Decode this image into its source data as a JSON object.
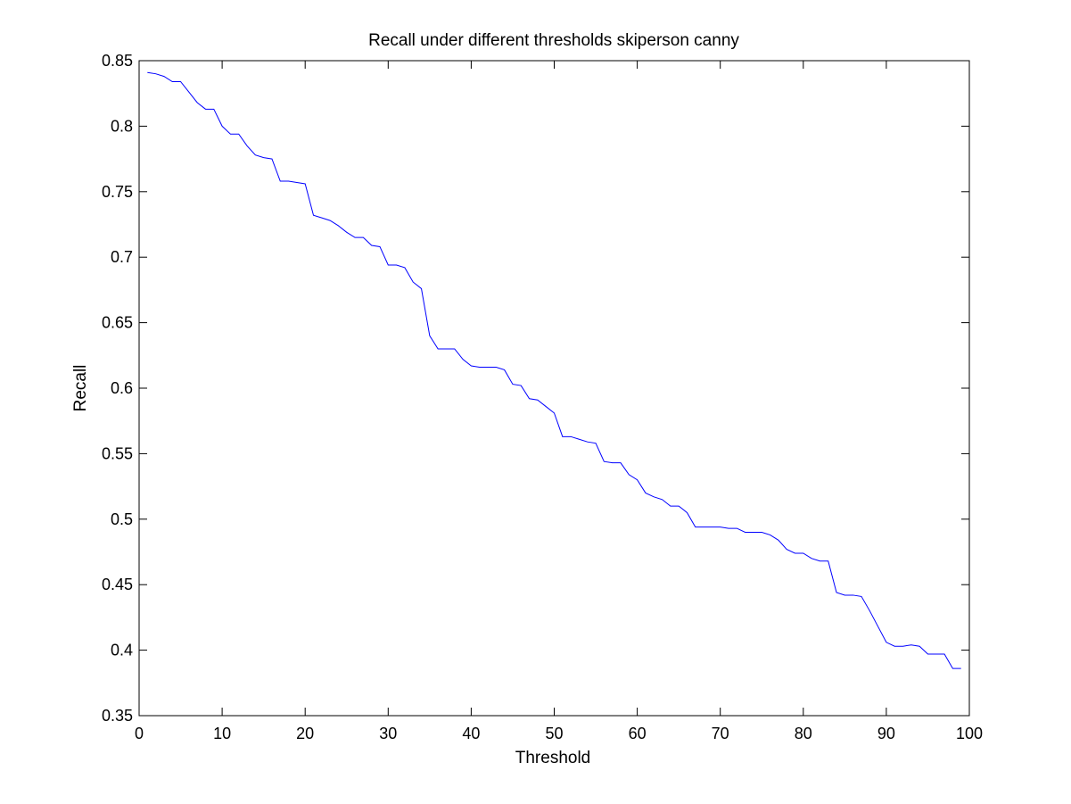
{
  "chart_data": {
    "type": "line",
    "title": "Recall under different thresholds skiperson canny",
    "xlabel": "Threshold",
    "ylabel": "Recall",
    "xlim": [
      0,
      100
    ],
    "ylim": [
      0.35,
      0.85
    ],
    "xticks": [
      0,
      10,
      20,
      30,
      40,
      50,
      60,
      70,
      80,
      90,
      100
    ],
    "xtick_labels": [
      "0",
      "10",
      "20",
      "30",
      "40",
      "50",
      "60",
      "70",
      "80",
      "90",
      "100"
    ],
    "yticks": [
      0.35,
      0.4,
      0.45,
      0.5,
      0.55,
      0.6,
      0.65,
      0.7,
      0.75,
      0.8,
      0.85
    ],
    "ytick_labels": [
      "0.35",
      "0.4",
      "0.45",
      "0.5",
      "0.55",
      "0.6",
      "0.65",
      "0.7",
      "0.75",
      "0.8",
      "0.85"
    ],
    "grid": false,
    "line_color": "#0000ff",
    "series": [
      {
        "x": [
          1,
          2,
          3,
          4,
          5,
          6,
          7,
          8,
          9,
          10,
          11,
          12,
          13,
          14,
          15,
          16,
          17,
          18,
          19,
          20,
          21,
          22,
          23,
          24,
          25,
          26,
          27,
          28,
          29,
          30,
          31,
          32,
          33,
          34,
          35,
          36,
          37,
          38,
          39,
          40,
          41,
          42,
          43,
          44,
          45,
          46,
          47,
          48,
          49,
          50,
          51,
          52,
          53,
          54,
          55,
          56,
          57,
          58,
          59,
          60,
          61,
          62,
          63,
          64,
          65,
          66,
          67,
          68,
          69,
          70,
          71,
          72,
          73,
          74,
          75,
          76,
          77,
          78,
          79,
          80,
          81,
          82,
          83,
          84,
          85,
          86,
          87,
          88,
          89,
          90,
          91,
          92,
          93,
          94,
          95,
          96,
          97,
          98,
          99
        ],
        "values": [
          0.841,
          0.84,
          0.838,
          0.834,
          0.834,
          0.826,
          0.818,
          0.813,
          0.813,
          0.8,
          0.794,
          0.794,
          0.785,
          0.778,
          0.776,
          0.775,
          0.758,
          0.758,
          0.757,
          0.756,
          0.732,
          0.73,
          0.728,
          0.724,
          0.719,
          0.715,
          0.715,
          0.709,
          0.708,
          0.694,
          0.694,
          0.692,
          0.681,
          0.676,
          0.64,
          0.63,
          0.63,
          0.63,
          0.622,
          0.617,
          0.616,
          0.616,
          0.616,
          0.614,
          0.603,
          0.602,
          0.592,
          0.591,
          0.586,
          0.581,
          0.563,
          0.563,
          0.561,
          0.559,
          0.558,
          0.544,
          0.543,
          0.543,
          0.534,
          0.53,
          0.52,
          0.517,
          0.515,
          0.51,
          0.51,
          0.505,
          0.494,
          0.494,
          0.494,
          0.494,
          0.493,
          0.493,
          0.49,
          0.49,
          0.49,
          0.488,
          0.484,
          0.477,
          0.474,
          0.474,
          0.47,
          0.468,
          0.468,
          0.444,
          0.442,
          0.442,
          0.441,
          0.43,
          0.418,
          0.406,
          0.403,
          0.403,
          0.404,
          0.403,
          0.397,
          0.397,
          0.397,
          0.386,
          0.386
        ]
      }
    ]
  }
}
